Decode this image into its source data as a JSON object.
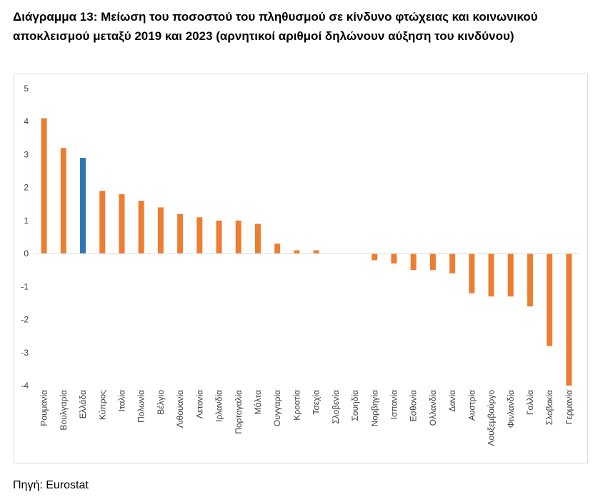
{
  "title": "Διάγραμμα 13: Μείωση του ποσοστού του πληθυσμού σε κίνδυνο φτώχειας και κοινωνικού αποκλεισμού μεταξύ 2019 και 2023 (αρνητικοί αριθμοί δηλώνουν αύξηση του κινδύνου)",
  "source": "Πηγή: Eurostat",
  "chart_data": {
    "type": "bar",
    "title": "",
    "xlabel": "",
    "ylabel": "",
    "ylim": [
      -4,
      5
    ],
    "yticks": [
      5,
      4,
      3,
      2,
      1,
      0,
      -1,
      -2,
      -3,
      -4
    ],
    "grid": false,
    "legend": "none",
    "categories": [
      "Ρουμανία",
      "Βουλγαρία",
      "Ελλάδα",
      "Κύπρος",
      "Ιταλία",
      "Πολωνία",
      "Βέλγιο",
      "Λιθουανία",
      "Λετονία",
      "Ιρλανδία",
      "Πορτογαλία",
      "Μάλτα",
      "Ουγγαρία",
      "Κροατία",
      "Τσεχία",
      "Σλοβενία",
      "Σουηδία",
      "Νορβηγία",
      "Ισπανία",
      "Εσθονία",
      "Ολλανδία",
      "Δανία",
      "Αυστρία",
      "Λουξεμβούργο",
      "Φινλανδία",
      "Γαλλία",
      "Σλοβακία",
      "Γερμανία"
    ],
    "values": [
      4.1,
      3.2,
      2.9,
      1.9,
      1.8,
      1.6,
      1.4,
      1.2,
      1.1,
      1.0,
      1.0,
      0.9,
      0.3,
      0.1,
      0.1,
      0.0,
      0.0,
      -0.2,
      -0.3,
      -0.5,
      -0.5,
      -0.6,
      -1.2,
      -1.3,
      -1.3,
      -1.6,
      -2.8,
      -4.0
    ],
    "colors": {
      "default": "#ed7d31",
      "highlight": "#2e75b6",
      "axis": "#d9d9d9"
    },
    "highlight": "Ελλάδα"
  }
}
